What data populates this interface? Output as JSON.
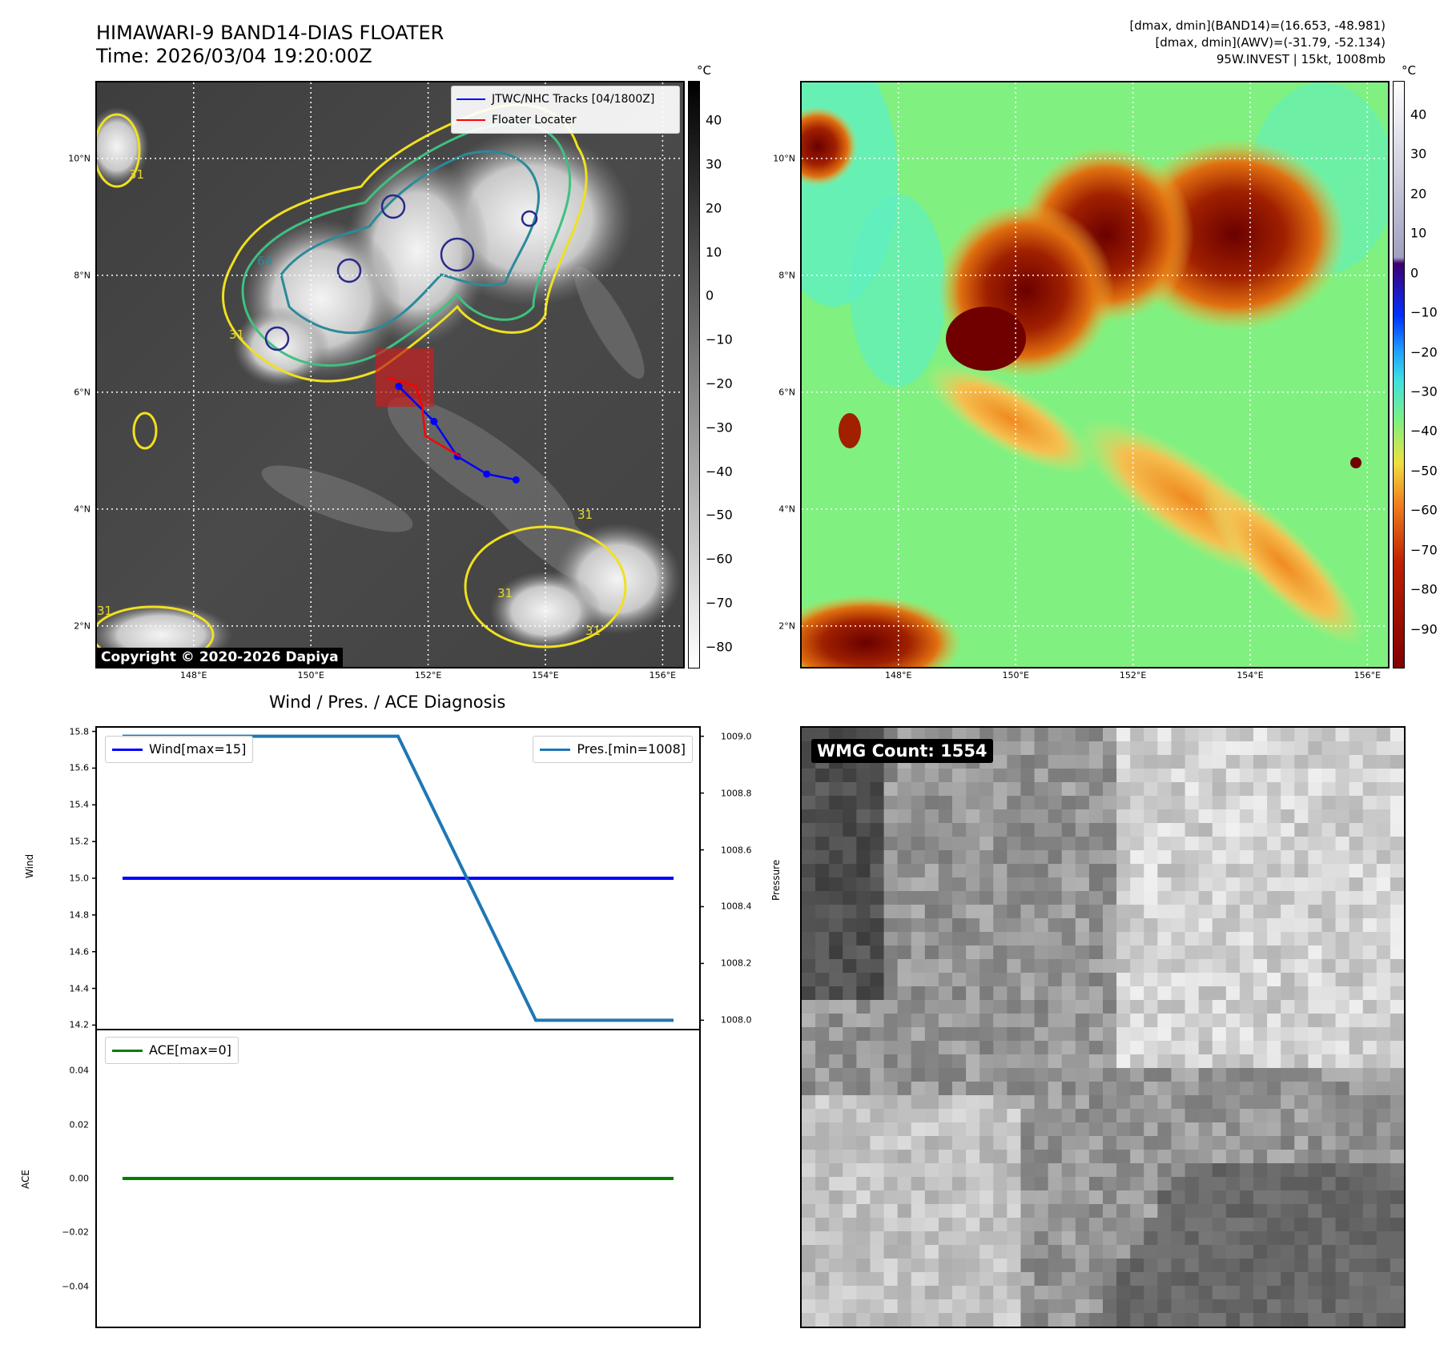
{
  "header": {
    "title_line1": "HIMAWARI-9 BAND14-DIAS FLOATER",
    "title_line2": "Time: 2026/03/04 19:20:00Z",
    "meta_line1": "[dmax, dmin](BAND14)=(16.653, -48.981)",
    "meta_line2": "[dmax, dmin](AWV)=(-31.79, -52.134)",
    "meta_line3": "95W.INVEST | 15kt, 1008mb"
  },
  "map": {
    "lon_ticks": [
      "148°E",
      "150°E",
      "152°E",
      "154°E",
      "156°E"
    ],
    "lat_ticks": [
      "10°N",
      "8°N",
      "6°N",
      "4°N",
      "2°N"
    ],
    "lon_range": [
      146.35,
      156.35
    ],
    "lat_range": [
      1.3,
      11.3
    ],
    "copyright": "Copyright © 2020-2026 Dapiya",
    "legend_tracks": "JTWC/NHC Tracks [04/1800Z]",
    "legend_floater": "Floater Locater",
    "track_color": "#0000ff",
    "floater_color": "#ff0000",
    "contour_labels": [
      "31",
      "64",
      "31",
      "31",
      "31",
      "31",
      "31"
    ]
  },
  "colorbars": {
    "unit": "°C",
    "band14_ticks": [
      "40",
      "30",
      "20",
      "10",
      "0",
      "−10",
      "−20",
      "−30",
      "−40",
      "−50",
      "−60",
      "−70",
      "−80"
    ],
    "awv_ticks": [
      "40",
      "30",
      "20",
      "10",
      "0",
      "−10",
      "−20",
      "−30",
      "−40",
      "−50",
      "−60",
      "−70",
      "−80",
      "−90"
    ]
  },
  "diagnosis": {
    "title": "Wind / Pres. / ACE Diagnosis",
    "wind_ylabel": "Wind",
    "pressure_ylabel": "Pressure",
    "ace_ylabel": "ACE",
    "legend_wind": "Wind[max=15]",
    "legend_pres": "Pres.[min=1008]",
    "legend_ace": "ACE[max=0]",
    "wind_ticks": [
      "15.8",
      "15.6",
      "15.4",
      "15.2",
      "15.0",
      "14.8",
      "14.6",
      "14.4",
      "14.2"
    ],
    "pres_ticks": [
      "1009.0",
      "1008.8",
      "1008.6",
      "1008.4",
      "1008.2",
      "1008.0"
    ],
    "ace_ticks": [
      "0.04",
      "0.02",
      "0.00",
      "−0.02",
      "−0.04"
    ],
    "wind_color": "#0000ff",
    "pres_color": "#1f77b4",
    "ace_color": "#008000"
  },
  "wmg": {
    "label": "WMG Count: 1554"
  },
  "chart_data": [
    {
      "type": "line",
      "title": "",
      "xlabel": "",
      "ylabel": "",
      "series": [
        {
          "name": "JTWC/NHC Tracks [04/1800Z]",
          "x": [
            151.5,
            152.1,
            152.5,
            153.0,
            153.5
          ],
          "y": [
            6.1,
            5.5,
            4.9,
            4.6,
            4.5
          ]
        },
        {
          "name": "Floater Locater",
          "x": [
            151.3,
            151.8,
            151.9,
            151.95,
            152.55
          ],
          "y": [
            6.25,
            6.1,
            5.75,
            5.25,
            4.9
          ]
        }
      ],
      "xlim": [
        146.35,
        156.35
      ],
      "ylim": [
        1.3,
        11.3
      ]
    },
    {
      "type": "line",
      "title": "Wind / Pres. / ACE Diagnosis",
      "x": [
        0,
        1,
        2,
        3,
        4
      ],
      "series": [
        {
          "name": "Wind[max=15]",
          "values": [
            15.0,
            15.0,
            15.0,
            15.0,
            15.0
          ],
          "axis": "left"
        },
        {
          "name": "Pres.[min=1008]",
          "values": [
            1009.0,
            1009.0,
            1009.0,
            1008.0,
            1008.0
          ],
          "axis": "right"
        }
      ],
      "ylabel": "Wind",
      "ylabel_right": "Pressure",
      "ylim": [
        14.18,
        15.82
      ],
      "ylim_right": [
        1007.97,
        1009.03
      ],
      "legend": "top"
    },
    {
      "type": "line",
      "title": "",
      "x": [
        0,
        1,
        2,
        3,
        4
      ],
      "series": [
        {
          "name": "ACE[max=0]",
          "values": [
            0,
            0,
            0,
            0,
            0
          ]
        }
      ],
      "ylabel": "ACE",
      "ylim": [
        -0.055,
        0.055
      ],
      "legend": "top-left"
    }
  ]
}
